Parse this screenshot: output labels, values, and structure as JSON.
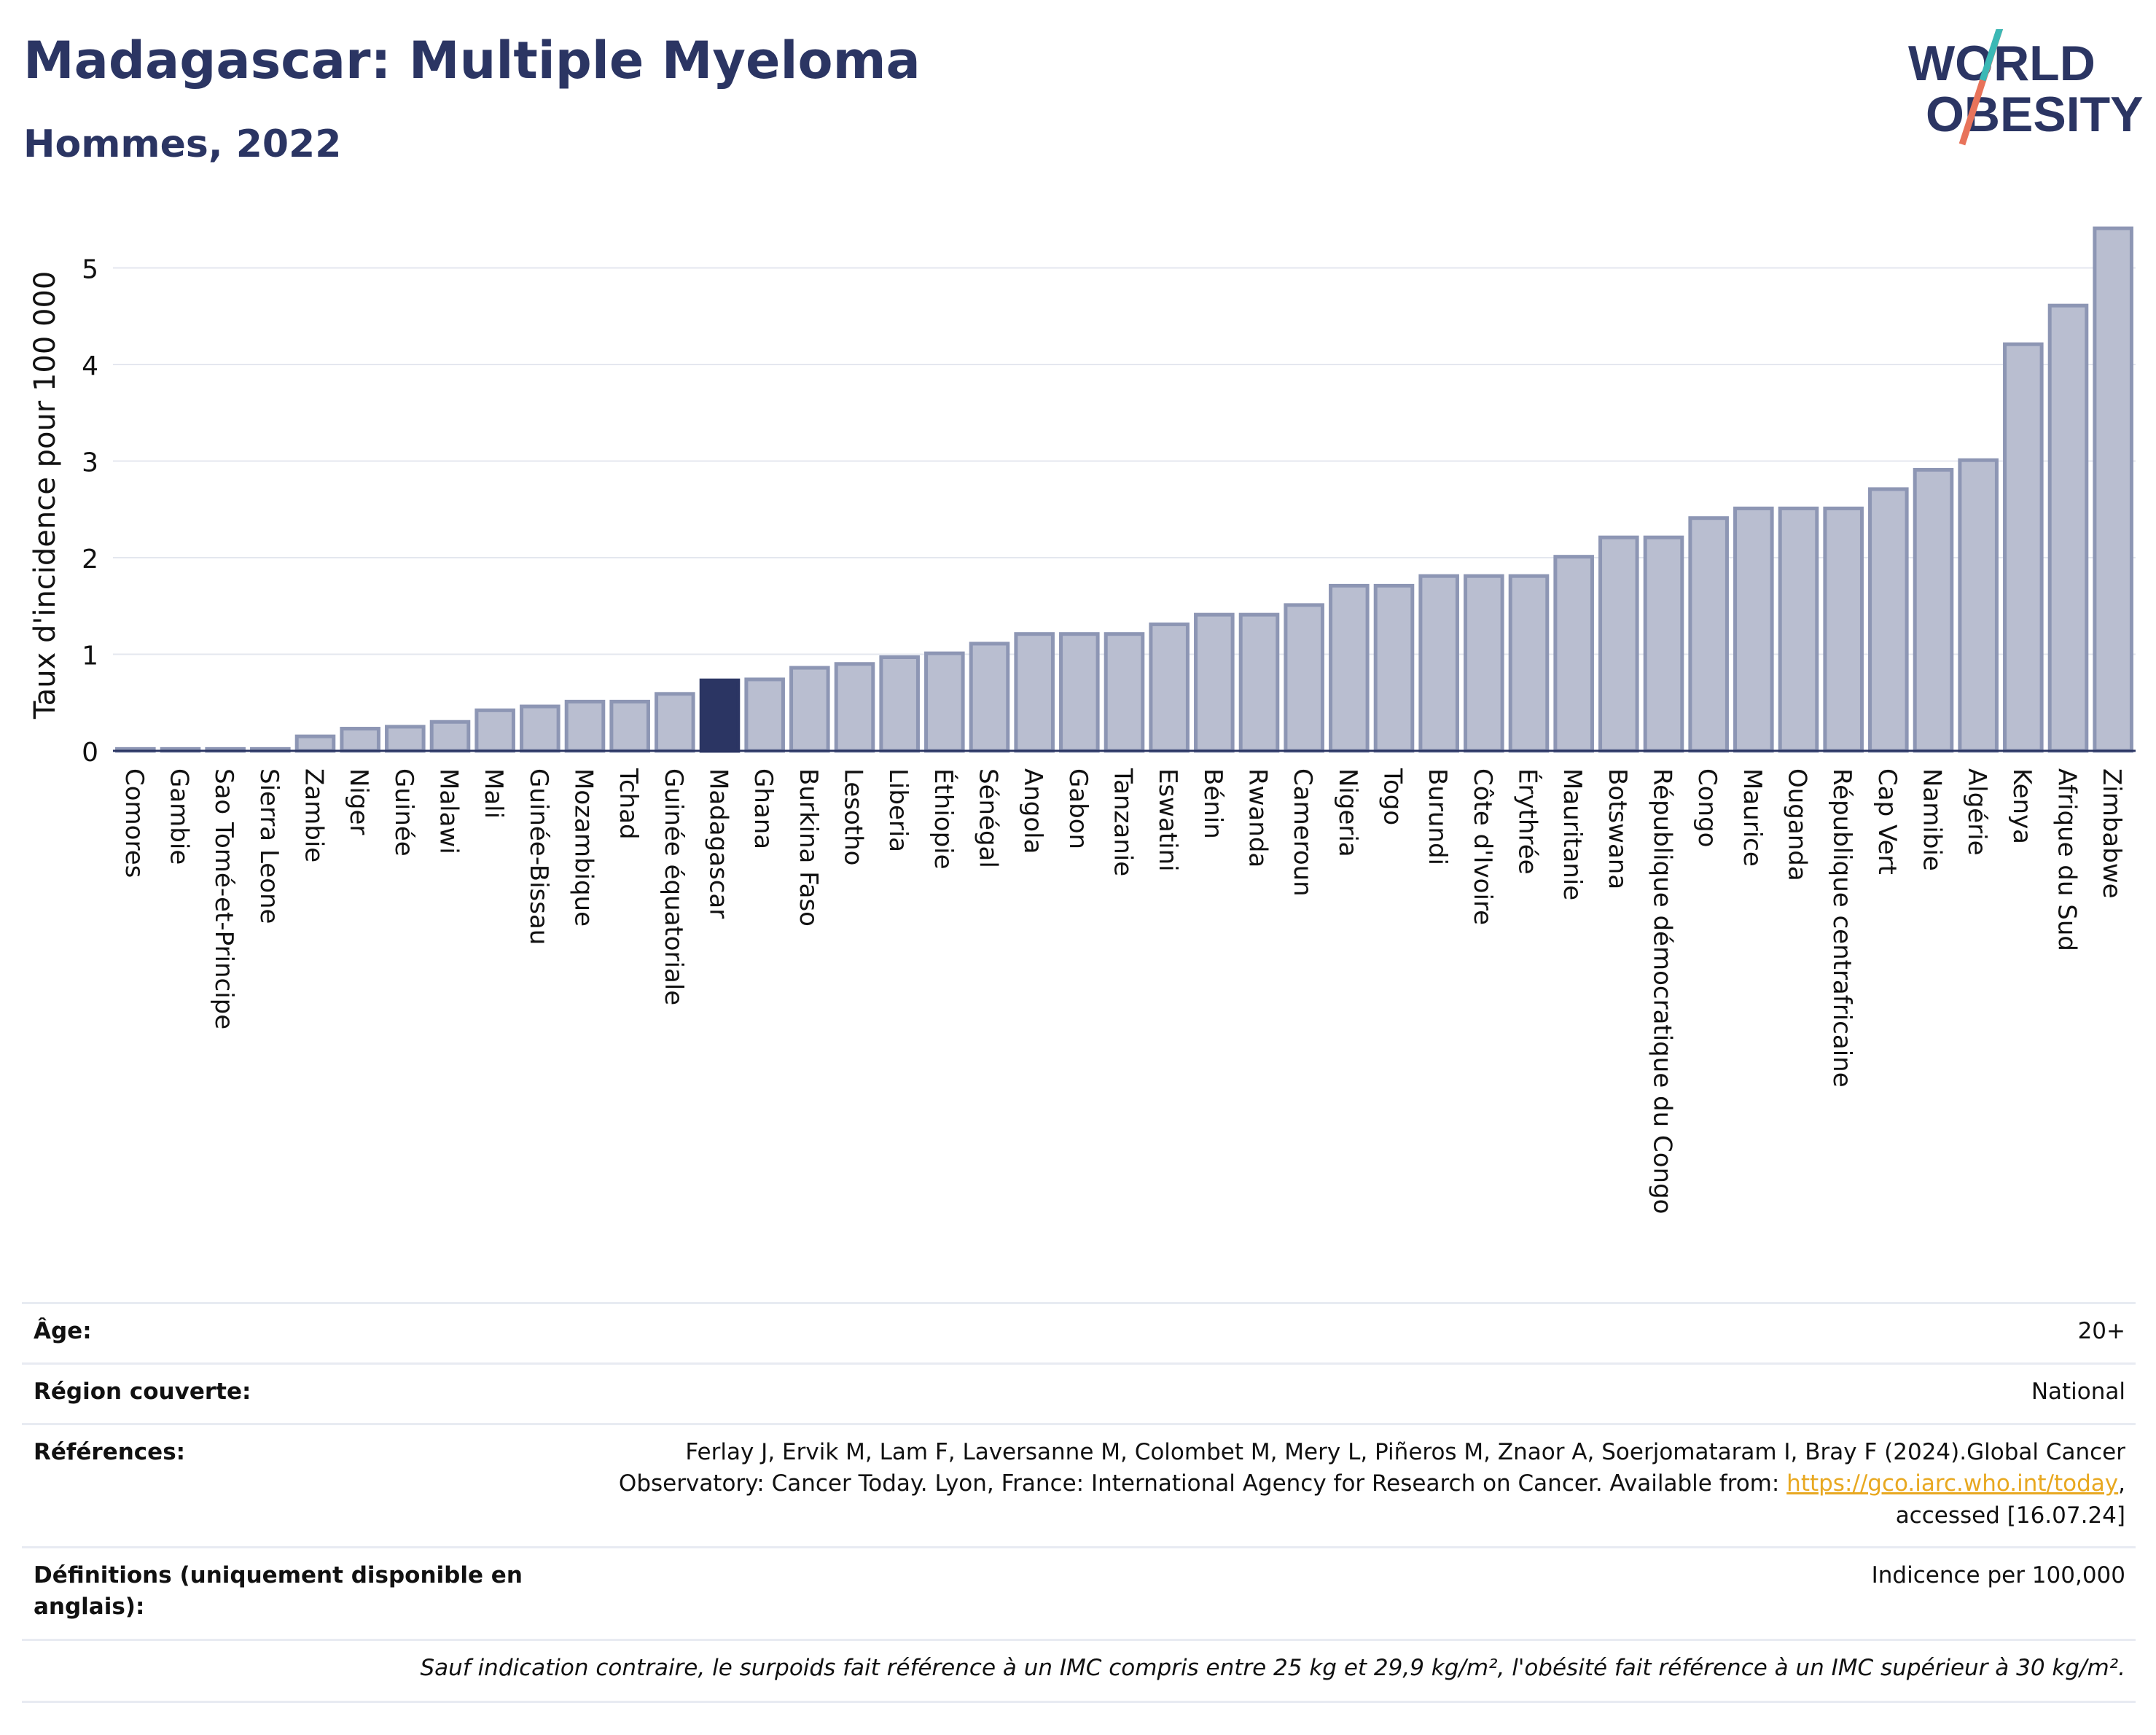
{
  "title": "Madagascar: Multiple Myeloma",
  "subtitle": "Hommes, 2022",
  "logo": {
    "line1": "WORLD",
    "line2": "OBESITY"
  },
  "colors": {
    "bar": "#b9bed0",
    "bar_border": "#8d96b4",
    "highlight": "#2b3563",
    "title": "#2b3563",
    "link": "#e8a820"
  },
  "chart_data": {
    "type": "bar",
    "title": "Madagascar: Multiple Myeloma",
    "subtitle": "Hommes, 2022",
    "xlabel": "",
    "ylabel": "Taux d'incidence pour 100 000",
    "ylim": [
      0,
      5.5
    ],
    "yticks": [
      0,
      1,
      2,
      3,
      4,
      5
    ],
    "grid": true,
    "highlight": "Madagascar",
    "categories": [
      "Comores",
      "Gambie",
      "Sao Tomé-et-Principe",
      "Sierra Leone",
      "Zambie",
      "Niger",
      "Guinée",
      "Malawi",
      "Mali",
      "Guinée-Bissau",
      "Mozambique",
      "Tchad",
      "Guinée équatoriale",
      "Madagascar",
      "Ghana",
      "Burkina Faso",
      "Lesotho",
      "Liberia",
      "Éthiopie",
      "Sénégal",
      "Angola",
      "Gabon",
      "Tanzanie",
      "Eswatini",
      "Bénin",
      "Rwanda",
      "Cameroun",
      "Nigeria",
      "Togo",
      "Burundi",
      "Côte d'Ivoire",
      "Érythrée",
      "Mauritanie",
      "Botswana",
      "République démocratique du Congo",
      "Congo",
      "Maurice",
      "Ouganda",
      "République centrafricaine",
      "Cap Vert",
      "Namibie",
      "Algérie",
      "Kenya",
      "Afrique du Sud",
      "Zimbabwe"
    ],
    "values": [
      0.02,
      0.02,
      0.02,
      0.02,
      0.15,
      0.23,
      0.25,
      0.3,
      0.42,
      0.46,
      0.51,
      0.51,
      0.59,
      0.73,
      0.74,
      0.86,
      0.9,
      0.97,
      1.01,
      1.11,
      1.21,
      1.21,
      1.21,
      1.31,
      1.41,
      1.41,
      1.51,
      1.71,
      1.71,
      1.81,
      1.81,
      1.81,
      2.01,
      2.21,
      2.21,
      2.41,
      2.51,
      2.51,
      2.51,
      2.71,
      2.91,
      3.01,
      4.21,
      4.61,
      5.41
    ]
  },
  "info": {
    "age_label": "Âge:",
    "age_value": "20+",
    "region_label": "Région couverte:",
    "region_value": "National",
    "references_label": "Références:",
    "references_text": "Ferlay J, Ervik M, Lam F, Laversanne M, Colombet M, Mery L, Piñeros M, Znaor A, Soerjomataram I, Bray F (2024).Global Cancer Observatory: Cancer Today. Lyon, France: International Agency for Research on Cancer. Available from:",
    "references_link": "https://gco.iarc.who.int/today",
    "references_suffix": ", accessed [16.07.24]",
    "definitions_label": "Définitions (uniquement disponible en anglais):",
    "definitions_value": "Indicence per 100,000",
    "note": "Sauf indication contraire, le surpoids fait référence à un IMC compris entre 25 kg et 29,9 kg/m², l'obésité fait référence à un IMC supérieur à 30 kg/m²."
  }
}
